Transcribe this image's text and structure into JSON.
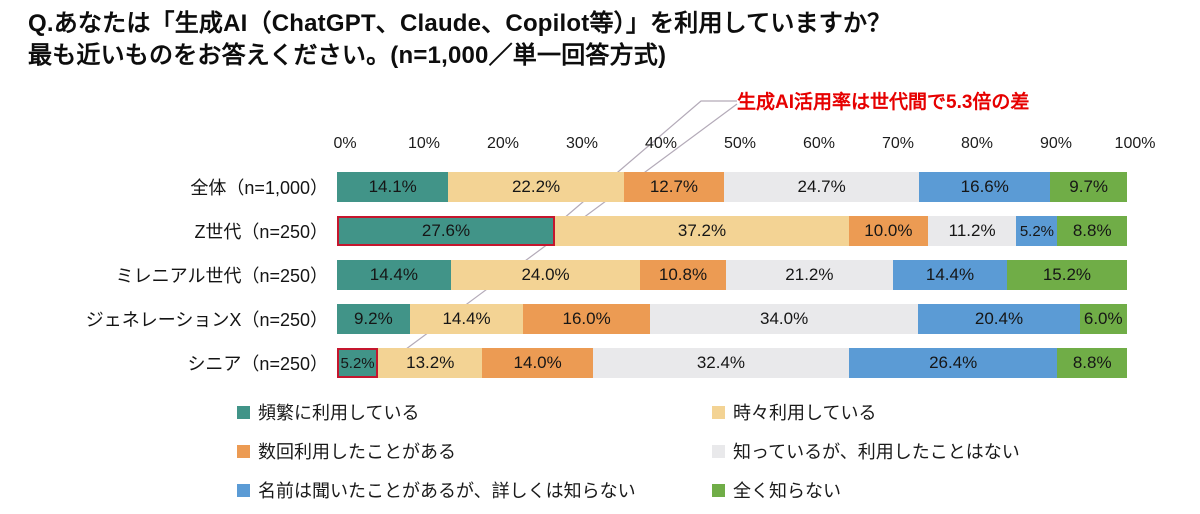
{
  "title": {
    "lines": [
      "Q.あなたは「生成AI（ChatGPT、Claude、Copilot等）」を利用していますか？",
      "最も近いものをお答えください。(n=1,000／単一回答方式)"
    ]
  },
  "annotation": {
    "text": "生成AI活用率は世代間で5.3倍の差",
    "color": "#e60000"
  },
  "chart_data": {
    "type": "bar",
    "stacked": true,
    "orientation": "horizontal",
    "value_suffix": "%",
    "xlim": [
      0,
      100
    ],
    "x_axis_ticks": [
      "0%",
      "10%",
      "20%",
      "30%",
      "40%",
      "50%",
      "60%",
      "70%",
      "80%",
      "90%",
      "100%"
    ],
    "grid": false,
    "legend_position": "bottom",
    "categories": [
      "全体（n=1,000）",
      "Z世代（n=250）",
      "ミレニアル世代（n=250）",
      "ジェネレーションX（n=250）",
      "シニア（n=250）"
    ],
    "series": [
      {
        "name": "頻繁に利用している",
        "color": "#419488",
        "values": [
          14.1,
          27.6,
          14.4,
          9.2,
          5.2
        ]
      },
      {
        "name": "時々利用している",
        "color": "#F3D394",
        "values": [
          22.2,
          37.2,
          24.0,
          14.4,
          13.2
        ]
      },
      {
        "name": "数回利用したことがある",
        "color": "#EC9B53",
        "values": [
          12.7,
          10.0,
          10.8,
          16.0,
          14.0
        ]
      },
      {
        "name": "知っているが、利用したことはない",
        "color": "#E9E9EB",
        "values": [
          24.7,
          11.2,
          21.2,
          34.0,
          32.4
        ]
      },
      {
        "name": "名前は聞いたことがあるが、詳しくは知らない",
        "color": "#5B9BD5",
        "values": [
          16.6,
          5.2,
          14.4,
          20.4,
          26.4
        ]
      },
      {
        "name": "全く知らない",
        "color": "#70AD47",
        "values": [
          9.7,
          8.8,
          15.2,
          6.0,
          8.8
        ]
      }
    ],
    "highlighted_segments": [
      {
        "row": 1,
        "series": 0
      },
      {
        "row": 4,
        "series": 0
      }
    ],
    "highlight_color": "#C5162E"
  }
}
